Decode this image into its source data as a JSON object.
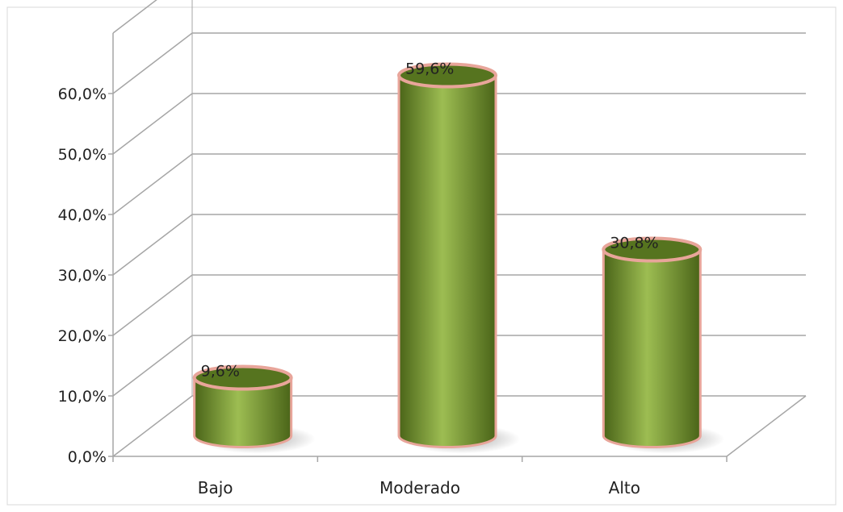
{
  "chart_data": {
    "type": "bar",
    "categories": [
      "Bajo",
      "Moderado",
      "Alto"
    ],
    "values": [
      9.6,
      59.6,
      30.8
    ],
    "data_labels": [
      "9,6%",
      "59,6%",
      "30,8%"
    ],
    "title": "",
    "xlabel": "",
    "ylabel": "",
    "ylim": [
      0,
      60
    ],
    "y_ticks": [
      0,
      10,
      20,
      30,
      40,
      50,
      60
    ],
    "y_tick_labels": [
      "0,0%",
      "10,0%",
      "20,0%",
      "30,0%",
      "40,0%",
      "50,0%",
      "60,0%"
    ],
    "grid": true,
    "legend": "none",
    "style": "3d-cylinder",
    "colors": {
      "bar_fill": "#7a9b34",
      "bar_dark": "#4a6418",
      "bar_light": "#9dbd52",
      "bar_outline": "#e8a59a",
      "top_fill": "#56741f",
      "gridline": "#a6a6a6",
      "frame": "#d9d9d9",
      "text": "#222222"
    }
  }
}
